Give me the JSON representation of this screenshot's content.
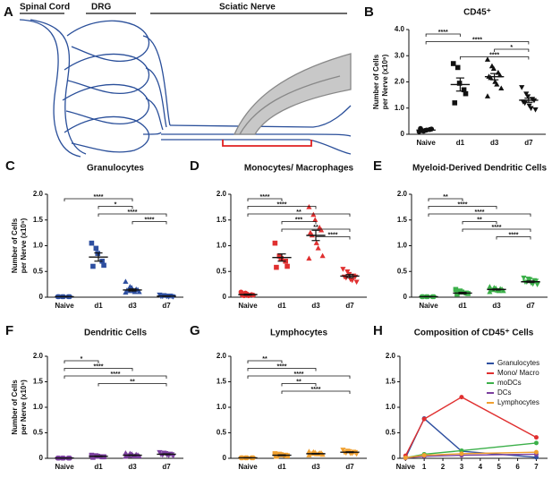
{
  "diagram": {
    "panel": "A",
    "labels": [
      "Spinal Cord",
      "DRG",
      "Sciatic Nerve"
    ]
  },
  "chart_data": [
    {
      "type": "dot",
      "panel": "B",
      "title": "CD45⁺",
      "ylabel": [
        "Number of Cells",
        "per Nerve (x10⁶)"
      ],
      "categories": [
        "Naive",
        "d1",
        "d3",
        "d7"
      ],
      "color": "#111111",
      "markers": [
        "circle",
        "square",
        "triangle",
        "triangle-down"
      ],
      "points": [
        [
          0.1,
          0.12,
          0.15,
          0.18,
          0.2,
          0.22,
          0.14,
          0.16
        ],
        [
          2.7,
          2.55,
          1.95,
          1.7,
          1.55,
          1.2
        ],
        [
          2.85,
          2.6,
          2.5,
          2.35,
          2.25,
          2.2,
          2.15,
          2.0,
          1.9,
          1.75,
          1.45
        ],
        [
          1.8,
          1.55,
          1.45,
          1.35,
          1.3,
          1.25,
          1.2,
          1.1,
          1.0,
          0.95
        ]
      ],
      "means": [
        0.16,
        1.9,
        2.2,
        1.3
      ],
      "errors": [
        0.02,
        0.25,
        0.12,
        0.08
      ],
      "ylim": [
        0,
        4
      ],
      "yticks": [
        0,
        {
          "value": 1,
          "label": "1.0"
        },
        {
          "value": 2,
          "label": "2.0"
        },
        {
          "value": 3,
          "label": "3.0"
        },
        {
          "value": 4,
          "label": "4.0"
        }
      ],
      "brackets": [
        {
          "between": [
            0,
            1
          ],
          "label": "****"
        },
        {
          "between": [
            0,
            3
          ],
          "label": "****"
        },
        {
          "between": [
            2,
            3
          ],
          "label": "*"
        },
        {
          "between": [
            1,
            3
          ],
          "label": "****"
        }
      ]
    },
    {
      "type": "dot",
      "panel": "C",
      "title": "Granulocytes",
      "ylabel": [
        "Number of Cells",
        "per Nerve (x10⁵)"
      ],
      "categories": [
        "Naive",
        "d1",
        "d3",
        "d7"
      ],
      "color": "#2e4fa0",
      "markers": [
        "circle",
        "square",
        "triangle",
        "triangle-down"
      ],
      "points": [
        [
          0.01,
          0.01,
          0.01,
          0.01,
          0.01,
          0.01
        ],
        [
          1.05,
          0.95,
          0.85,
          0.7,
          0.62,
          0.6
        ],
        [
          0.3,
          0.2,
          0.18,
          0.15,
          0.14,
          0.13,
          0.12,
          0.12,
          0.1,
          0.1,
          0.09
        ],
        [
          0.05,
          0.04,
          0.03,
          0.03,
          0.02,
          0.02,
          0.02,
          0.02,
          0.01,
          0.01
        ]
      ],
      "means": [
        0.01,
        0.78,
        0.14,
        0.02
      ],
      "errors": [
        0.003,
        0.08,
        0.02,
        0.005
      ],
      "ylim": [
        0,
        2
      ],
      "yticks": [
        0,
        0.5,
        {
          "value": 1,
          "label": "1.0"
        },
        1.5,
        {
          "value": 2,
          "label": "2.0"
        }
      ],
      "brackets": [
        {
          "between": [
            0,
            2
          ],
          "label": "****"
        },
        {
          "between": [
            1,
            2
          ],
          "label": "*"
        },
        {
          "between": [
            1,
            3
          ],
          "label": "****"
        },
        {
          "between": [
            2,
            3
          ],
          "label": "****"
        }
      ]
    },
    {
      "type": "dot",
      "panel": "D",
      "title": "Monocytes/ Macrophages",
      "categories": [
        "Naive",
        "d1",
        "d3",
        "d7"
      ],
      "color": "#e03030",
      "markers": [
        "circle",
        "square",
        "triangle",
        "triangle-down"
      ],
      "points": [
        [
          0.1,
          0.08,
          0.06,
          0.05,
          0.04,
          0.04,
          0.03,
          0.03
        ],
        [
          1.05,
          0.8,
          0.75,
          0.7,
          0.6,
          0.58
        ],
        [
          1.75,
          1.6,
          1.5,
          1.35,
          1.3,
          1.25,
          1.2,
          1.05,
          0.95,
          0.8,
          0.75
        ],
        [
          0.55,
          0.5,
          0.45,
          0.42,
          0.4,
          0.4,
          0.38,
          0.35,
          0.33,
          0.3
        ]
      ],
      "means": [
        0.05,
        0.77,
        1.2,
        0.41
      ],
      "errors": [
        0.01,
        0.07,
        0.1,
        0.03
      ],
      "ylim": [
        0,
        2
      ],
      "yticks": [
        0,
        0.5,
        {
          "value": 1,
          "label": "1.0"
        },
        1.5,
        {
          "value": 2,
          "label": "2.0"
        }
      ],
      "brackets": [
        {
          "between": [
            0,
            1
          ],
          "label": "****"
        },
        {
          "between": [
            0,
            2
          ],
          "label": "****"
        },
        {
          "between": [
            0,
            3
          ],
          "label": "**"
        },
        {
          "between": [
            1,
            2
          ],
          "label": "***"
        },
        {
          "between": [
            1,
            3
          ],
          "label": "**"
        },
        {
          "between": [
            2,
            3
          ],
          "label": "****"
        }
      ]
    },
    {
      "type": "dot",
      "panel": "E",
      "title": "Myeloid-Derived Dendritic Cells",
      "categories": [
        "Naive",
        "d1",
        "d3",
        "d7"
      ],
      "color": "#3cb04a",
      "markers": [
        "circle",
        "square",
        "triangle",
        "triangle-down"
      ],
      "points": [
        [
          0.01,
          0.01,
          0.01,
          0.01,
          0.01,
          0.01
        ],
        [
          0.15,
          0.12,
          0.1,
          0.08,
          0.07,
          0.06
        ],
        [
          0.2,
          0.18,
          0.17,
          0.16,
          0.15,
          0.15,
          0.14,
          0.13,
          0.12,
          0.12,
          0.1
        ],
        [
          0.38,
          0.36,
          0.35,
          0.33,
          0.32,
          0.3,
          0.3,
          0.28,
          0.26,
          0.25
        ]
      ],
      "means": [
        0.01,
        0.08,
        0.15,
        0.3
      ],
      "errors": [
        0.002,
        0.015,
        0.01,
        0.015
      ],
      "ylim": [
        0,
        2
      ],
      "yticks": [
        0,
        0.5,
        {
          "value": 1,
          "label": "1.0"
        },
        1.5,
        {
          "value": 2,
          "label": "2.0"
        }
      ],
      "brackets": [
        {
          "between": [
            0,
            1
          ],
          "label": "**"
        },
        {
          "between": [
            0,
            2
          ],
          "label": "****"
        },
        {
          "between": [
            0,
            3
          ],
          "label": "****"
        },
        {
          "between": [
            1,
            2
          ],
          "label": "**"
        },
        {
          "between": [
            1,
            3
          ],
          "label": "****"
        },
        {
          "between": [
            2,
            3
          ],
          "label": "****"
        }
      ]
    },
    {
      "type": "dot",
      "panel": "F",
      "title": "Dendritic Cells",
      "ylabel": [
        "Number of Cells",
        "per Nerve (x10⁵)"
      ],
      "categories": [
        "Naive",
        "d1",
        "d3",
        "d7"
      ],
      "color": "#7b3f9e",
      "markers": [
        "circle",
        "square",
        "triangle",
        "triangle-down"
      ],
      "points": [
        [
          0.005,
          0.005,
          0.005,
          0.005,
          0.005,
          0.005
        ],
        [
          0.06,
          0.05,
          0.04,
          0.03,
          0.03,
          0.02
        ],
        [
          0.1,
          0.09,
          0.08,
          0.07,
          0.06,
          0.06,
          0.05,
          0.05,
          0.04,
          0.04,
          0.03
        ],
        [
          0.12,
          0.11,
          0.1,
          0.09,
          0.08,
          0.08,
          0.07,
          0.07,
          0.06,
          0.05
        ]
      ],
      "means": [
        0.005,
        0.04,
        0.06,
        0.08
      ],
      "errors": [
        0.001,
        0.006,
        0.006,
        0.007
      ],
      "ylim": [
        0,
        2
      ],
      "yticks": [
        0,
        0.5,
        {
          "value": 1,
          "label": "1.0"
        },
        1.5,
        {
          "value": 2,
          "label": "2.0"
        }
      ],
      "brackets": [
        {
          "between": [
            0,
            1
          ],
          "label": "*"
        },
        {
          "between": [
            0,
            2
          ],
          "label": "****"
        },
        {
          "between": [
            0,
            3
          ],
          "label": "****"
        },
        {
          "between": [
            1,
            3
          ],
          "label": "**"
        }
      ]
    },
    {
      "type": "dot",
      "panel": "G",
      "title": "Lymphocytes",
      "categories": [
        "Naive",
        "d1",
        "d3",
        "d7"
      ],
      "color": "#f0a030",
      "markers": [
        "circle",
        "square",
        "triangle",
        "triangle-down"
      ],
      "points": [
        [
          0.01,
          0.01,
          0.01,
          0.01,
          0.01,
          0.01
        ],
        [
          0.09,
          0.08,
          0.07,
          0.06,
          0.05,
          0.04
        ],
        [
          0.13,
          0.12,
          0.11,
          0.1,
          0.1,
          0.09,
          0.09,
          0.08,
          0.08,
          0.07,
          0.06
        ],
        [
          0.17,
          0.15,
          0.14,
          0.13,
          0.12,
          0.12,
          0.11,
          0.1,
          0.1,
          0.09
        ]
      ],
      "means": [
        0.01,
        0.06,
        0.09,
        0.12
      ],
      "errors": [
        0.002,
        0.008,
        0.006,
        0.008
      ],
      "ylim": [
        0,
        2
      ],
      "yticks": [
        0,
        0.5,
        {
          "value": 1,
          "label": "1.0"
        },
        1.5,
        {
          "value": 2,
          "label": "2.0"
        }
      ],
      "brackets": [
        {
          "between": [
            0,
            1
          ],
          "label": "**"
        },
        {
          "between": [
            0,
            2
          ],
          "label": "****"
        },
        {
          "between": [
            0,
            3
          ],
          "label": "****"
        },
        {
          "between": [
            1,
            2
          ],
          "label": "**"
        },
        {
          "between": [
            1,
            3
          ],
          "label": "****"
        }
      ]
    },
    {
      "type": "line",
      "panel": "H",
      "title": "Composition of CD45⁺ Cells",
      "x": [
        0,
        1,
        3,
        7
      ],
      "series": [
        {
          "name": "Granulocytes",
          "color": "#2e4fa0",
          "values": [
            0.01,
            0.78,
            0.14,
            0.02
          ]
        },
        {
          "name": "Mono/ Macro",
          "color": "#e03030",
          "values": [
            0.05,
            0.77,
            1.2,
            0.41
          ]
        },
        {
          "name": "moDCs",
          "color": "#3cb04a",
          "values": [
            0.01,
            0.08,
            0.15,
            0.3
          ]
        },
        {
          "name": "DCs",
          "color": "#7b3f9e",
          "values": [
            0.005,
            0.04,
            0.06,
            0.08
          ]
        },
        {
          "name": "Lymphocytes",
          "color": "#f0a030",
          "values": [
            0.01,
            0.06,
            0.09,
            0.12
          ]
        }
      ],
      "xlim": [
        -0.3,
        7.6
      ],
      "xticks": [
        {
          "value": 0,
          "label": "Naive"
        },
        1,
        2,
        3,
        4,
        5,
        6,
        7
      ],
      "ylim": [
        0,
        2
      ],
      "yticks": [
        0,
        0.5,
        {
          "value": 1,
          "label": "1.0"
        },
        1.5,
        {
          "value": 2,
          "label": "2.0"
        }
      ],
      "legend": "upper right"
    }
  ]
}
